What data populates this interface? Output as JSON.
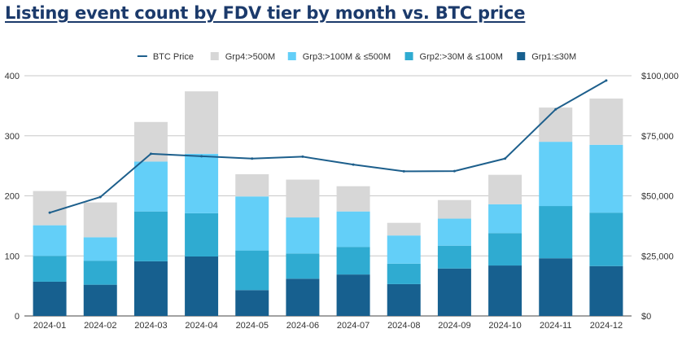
{
  "chart_data": {
    "title": "Listing event count by FDV tier by month vs. BTC price",
    "type": "bar",
    "stacked": true,
    "categories": [
      "2024-01",
      "2024-02",
      "2024-03",
      "2024-04",
      "2024-05",
      "2024-06",
      "2024-07",
      "2024-08",
      "2024-09",
      "2024-10",
      "2024-11",
      "2024-12"
    ],
    "series": [
      {
        "name": "Grp1:≤30M",
        "color": "#17608f",
        "values": [
          57,
          52,
          91,
          99,
          43,
          62,
          69,
          53,
          79,
          84,
          96,
          83
        ]
      },
      {
        "name": "Grp2:>30M & ≤100M",
        "color": "#2fabd1",
        "values": [
          43,
          40,
          83,
          72,
          66,
          42,
          46,
          34,
          38,
          54,
          87,
          89
        ]
      },
      {
        "name": "Grp3:>100M & ≤500M",
        "color": "#63cff8",
        "values": [
          51,
          39,
          83,
          99,
          90,
          60,
          59,
          47,
          45,
          48,
          107,
          113
        ]
      },
      {
        "name": "Grp4:>500M",
        "color": "#d7d7d7",
        "values": [
          57,
          58,
          66,
          104,
          37,
          63,
          42,
          21,
          31,
          49,
          57,
          77
        ]
      }
    ],
    "line_series": {
      "name": "BTC Price",
      "color": "#1d5f8c",
      "axis": "right",
      "values": [
        43000,
        49500,
        67500,
        66500,
        65500,
        66300,
        63000,
        60200,
        60300,
        65500,
        86000,
        98000
      ]
    },
    "y_left": {
      "min": 0,
      "max": 400,
      "ticks": [
        "0",
        "100",
        "200",
        "300",
        "400"
      ]
    },
    "y_right": {
      "min": 0,
      "max": 100000,
      "ticks": [
        "$0",
        "$25,000",
        "$50,000",
        "$75,000",
        "$100,000"
      ]
    },
    "legend_position": "top-center",
    "grid": true
  }
}
